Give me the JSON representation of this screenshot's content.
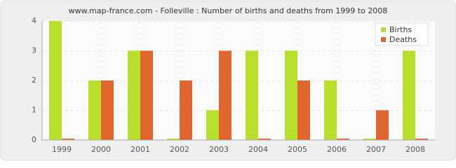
{
  "chart_data": {
    "type": "bar",
    "title": "www.map-france.com - Folleville : Number of births and deaths from 1999 to 2008",
    "categories": [
      "1999",
      "2000",
      "2001",
      "2002",
      "2003",
      "2004",
      "2005",
      "2006",
      "2007",
      "2008"
    ],
    "series": [
      {
        "name": "Births",
        "color": "#b8df2a",
        "values": [
          4,
          2,
          3,
          0,
          1,
          3,
          3,
          2,
          0,
          3
        ]
      },
      {
        "name": "Deaths",
        "color": "#e0662e",
        "values": [
          0,
          2,
          3,
          2,
          3,
          0,
          2,
          0,
          1,
          0
        ]
      }
    ],
    "ylim": [
      0,
      4
    ],
    "yticks": [
      0,
      1,
      2,
      3,
      4
    ],
    "grid": true,
    "legend": "top-right"
  }
}
